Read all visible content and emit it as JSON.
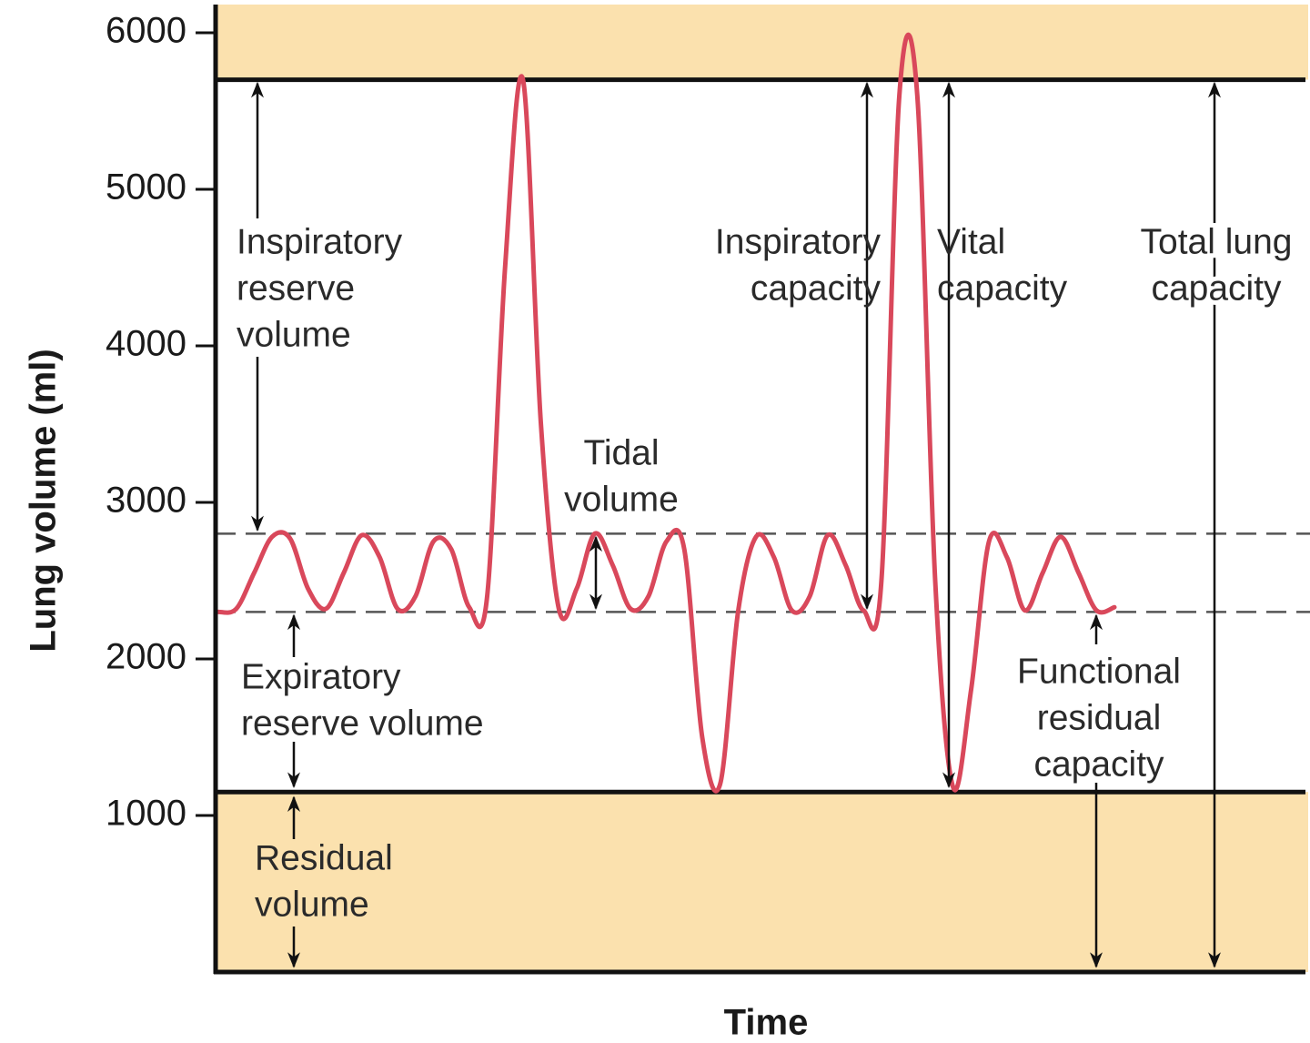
{
  "chart_data": {
    "type": "line",
    "y_label": "Lung volume (ml)",
    "x_label": "Time",
    "ylim": [
      0,
      6180
    ],
    "yticks": [
      1000,
      2000,
      3000,
      4000,
      5000,
      6000
    ],
    "band_color": "#fbe1ae",
    "reference_lines": [
      {
        "value": 5700,
        "style": "solid"
      },
      {
        "value": 2800,
        "style": "dashed"
      },
      {
        "value": 2300,
        "style": "dashed"
      },
      {
        "value": 1150,
        "style": "solid"
      }
    ],
    "categories": [
      null,
      null,
      null,
      null,
      null,
      null,
      null,
      null,
      null,
      null,
      null,
      null,
      null,
      null,
      null,
      null,
      null,
      null,
      null,
      null,
      null,
      null,
      null,
      null,
      null,
      null,
      null,
      null,
      null,
      null,
      null,
      null,
      null,
      null,
      null,
      null,
      null,
      null,
      null,
      null,
      null,
      null,
      null,
      null,
      null,
      null,
      null,
      null,
      null,
      null,
      null
    ],
    "series": [
      {
        "color": "#d9485b",
        "values": [
          2300,
          2320,
          2550,
          2780,
          2770,
          2450,
          2320,
          2550,
          2790,
          2650,
          2320,
          2400,
          2750,
          2700,
          2330,
          2400,
          4500,
          5700,
          3500,
          2320,
          2450,
          2800,
          2600,
          2320,
          2400,
          2750,
          2700,
          1500,
          1200,
          2300,
          2780,
          2650,
          2310,
          2400,
          2790,
          2600,
          2310,
          2500,
          5600,
          5600,
          2500,
          1180,
          1800,
          2750,
          2650,
          2310,
          2550,
          2780,
          2550,
          2310,
          2330
        ]
      }
    ],
    "annotations": [
      {
        "lines": [
          "Inspiratory",
          "reserve",
          "volume"
        ]
      },
      {
        "lines": [
          "Tidal",
          "volume"
        ]
      },
      {
        "lines": [
          "Expiratory",
          "reserve volume"
        ]
      },
      {
        "lines": [
          "Residual",
          "volume"
        ]
      },
      {
        "lines": [
          "Inspiratory",
          "capacity"
        ]
      },
      {
        "lines": [
          "Vital",
          "capacity"
        ]
      },
      {
        "lines": [
          "Total lung",
          "capacity"
        ]
      },
      {
        "lines": [
          "Functional",
          "residual",
          "capacity"
        ]
      }
    ]
  }
}
